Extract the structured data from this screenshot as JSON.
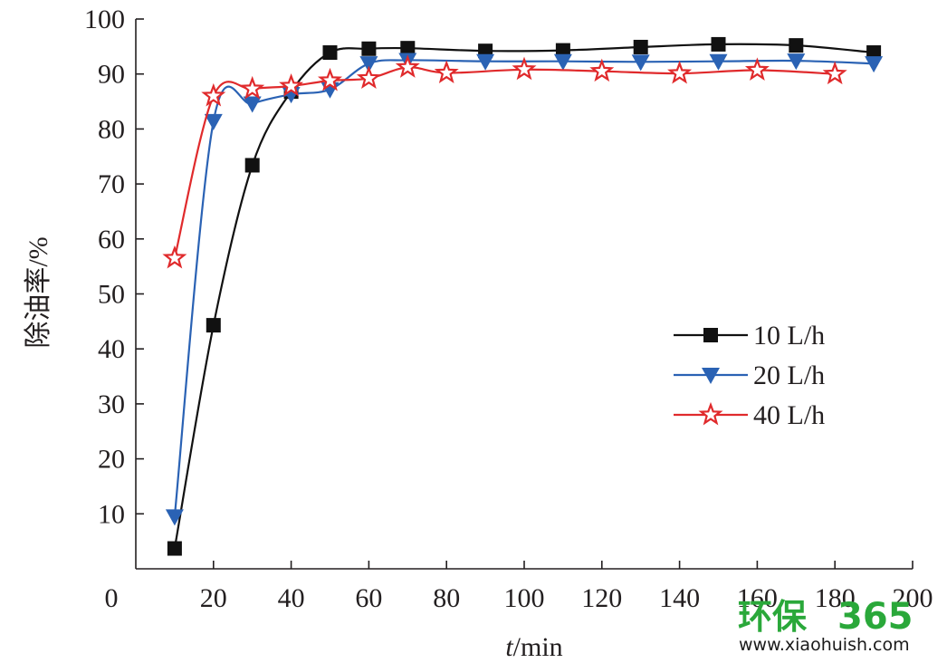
{
  "chart_data": {
    "type": "line",
    "xlabel_italic": "t",
    "xlabel_rest": "/min",
    "ylabel": "除油率/%",
    "xlim": [
      0,
      200
    ],
    "ylim": [
      0,
      100
    ],
    "x_ticks": [
      0,
      20,
      40,
      60,
      80,
      100,
      120,
      140,
      160,
      180,
      200
    ],
    "y_ticks": [
      10,
      20,
      30,
      40,
      50,
      60,
      70,
      80,
      90,
      100
    ],
    "legend_position": "center-right",
    "series": [
      {
        "name": "10 L/h",
        "color": "#111111",
        "marker": "square",
        "x": [
          10,
          20,
          30,
          40,
          50,
          60,
          70,
          90,
          110,
          130,
          150,
          170,
          190
        ],
        "y": [
          3.7,
          44.3,
          73.4,
          86.8,
          93.9,
          94.6,
          94.7,
          94.2,
          94.3,
          94.9,
          95.4,
          95.2,
          93.9
        ]
      },
      {
        "name": "20 L/h",
        "color": "#2a62b4",
        "marker": "triangle-down",
        "x": [
          10,
          20,
          30,
          40,
          50,
          60,
          70,
          90,
          110,
          130,
          150,
          170,
          190
        ],
        "y": [
          9.5,
          81.4,
          84.6,
          86.3,
          87.2,
          91.9,
          92.5,
          92.3,
          92.3,
          92.2,
          92.3,
          92.4,
          91.9
        ]
      },
      {
        "name": "40 L/h",
        "color": "#e02a2c",
        "marker": "star",
        "x": [
          10,
          20,
          30,
          40,
          50,
          60,
          70,
          80,
          100,
          120,
          140,
          160,
          180
        ],
        "y": [
          56.5,
          86.0,
          87.3,
          87.8,
          88.8,
          89.2,
          91.2,
          90.2,
          90.8,
          90.5,
          90.1,
          90.7,
          90.0
        ]
      }
    ]
  },
  "watermark": {
    "brand_cn": "环保",
    "brand_num": "365",
    "url": "www.xiaohuish.com",
    "color": "#2aa83a"
  }
}
